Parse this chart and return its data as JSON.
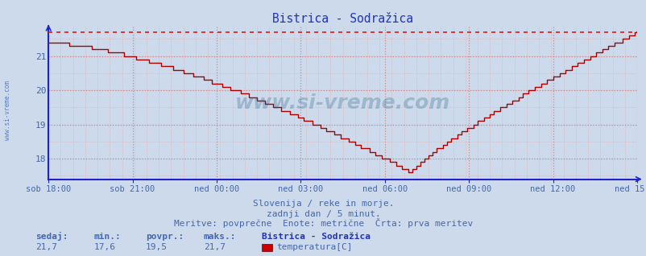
{
  "title": "Bistrica - Sodražica",
  "bg_color": "#ccdaec",
  "plot_bg_color": "#ccdaec",
  "line_color": "#aa0000",
  "dashed_line_color": "#cc2222",
  "grid_color_major": "#cc8888",
  "grid_color_minor": "#ddaaaa",
  "axis_color": "#2222cc",
  "text_color": "#4466aa",
  "title_color": "#2233bb",
  "ylabel_min": 17.4,
  "ylabel_max": 21.85,
  "yticks": [
    18,
    19,
    20,
    21
  ],
  "xtick_labels": [
    "sob 18:00",
    "sob 21:00",
    "ned 00:00",
    "ned 03:00",
    "ned 06:00",
    "ned 09:00",
    "ned 12:00",
    "ned 15:00"
  ],
  "footer_line1": "Slovenija / reke in morje.",
  "footer_line2": "zadnji dan / 5 minut.",
  "footer_line3": "Meritve: povprečne  Enote: metrične  Črta: prva meritev",
  "stats_label1": "sedaj:",
  "stats_label2": "min.:",
  "stats_label3": "povpr.:",
  "stats_label4": "maks.:",
  "stats_val1": "21,7",
  "stats_val2": "17,6",
  "stats_val3": "19,5",
  "stats_val4": "21,7",
  "legend_title": "Bistrica - Sodražica",
  "legend_item": "temperatura[C]",
  "watermark": "www.si-vreme.com",
  "watermark_color": "#336688",
  "max_val": 21.7,
  "min_val": 17.6,
  "n_points": 289
}
